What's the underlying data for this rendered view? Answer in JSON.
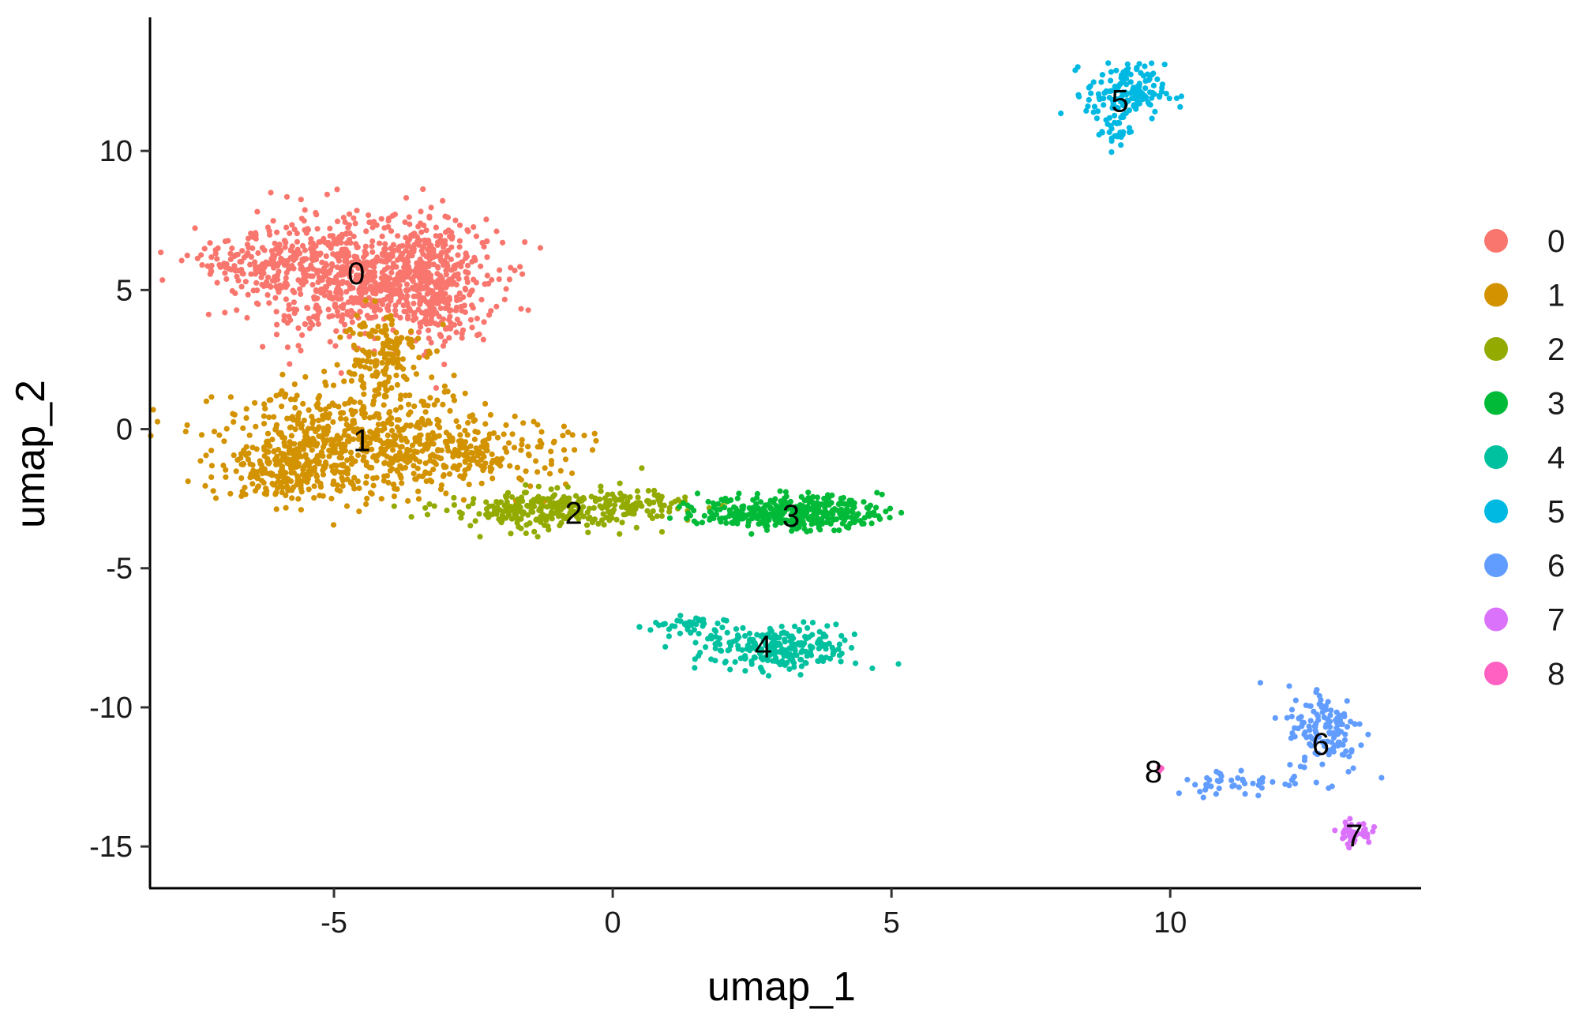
{
  "chart_data": {
    "type": "scatter",
    "title": "",
    "xlabel": "umap_1",
    "ylabel": "umap_2",
    "xlim": [
      -8.3,
      14.5
    ],
    "ylim": [
      -16.5,
      14.8
    ],
    "xticks": [
      -5,
      0,
      5,
      10
    ],
    "yticks": [
      -15,
      -10,
      -5,
      0,
      5,
      10
    ],
    "grid": false,
    "legend_position": "right",
    "clusters": [
      {
        "name": "0",
        "color": "#F8766D",
        "label_x": -4.6,
        "label_y": 5.6,
        "blobs": [
          {
            "cx": -4.5,
            "cy": 5.5,
            "sx": 1.1,
            "sy": 1.05,
            "n": 780
          },
          {
            "cx": -3.2,
            "cy": 5.2,
            "sx": 0.45,
            "sy": 1.1,
            "n": 260
          },
          {
            "cx": -6.3,
            "cy": 6.0,
            "sx": 0.6,
            "sy": 0.4,
            "n": 120
          }
        ]
      },
      {
        "name": "1",
        "color": "#D39200",
        "label_x": -4.5,
        "label_y": -0.4,
        "blobs": [
          {
            "cx": -4.6,
            "cy": -0.5,
            "sx": 1.2,
            "sy": 1.0,
            "n": 600
          },
          {
            "cx": -5.9,
            "cy": -1.4,
            "sx": 0.55,
            "sy": 0.5,
            "n": 160
          },
          {
            "cx": -4.2,
            "cy": 2.8,
            "sx": 0.35,
            "sy": 0.8,
            "n": 140
          },
          {
            "cx": -2.4,
            "cy": -0.9,
            "sx": 0.8,
            "sy": 0.6,
            "n": 180
          }
        ]
      },
      {
        "name": "2",
        "color": "#93AA00",
        "label_x": -0.7,
        "label_y": -3.0,
        "blobs": [
          {
            "cx": -1.2,
            "cy": -2.9,
            "sx": 0.9,
            "sy": 0.35,
            "n": 260
          },
          {
            "cx": 0.4,
            "cy": -2.7,
            "sx": 0.6,
            "sy": 0.25,
            "n": 80
          }
        ]
      },
      {
        "name": "3",
        "color": "#00BA38",
        "label_x": 3.2,
        "label_y": -3.1,
        "blobs": [
          {
            "cx": 3.2,
            "cy": -3.0,
            "sx": 0.8,
            "sy": 0.3,
            "n": 380
          }
        ]
      },
      {
        "name": "4",
        "color": "#00C19F",
        "label_x": 2.7,
        "label_y": -7.8,
        "blobs": [
          {
            "cx": 3.0,
            "cy": -7.9,
            "sx": 0.7,
            "sy": 0.4,
            "n": 240
          },
          {
            "cx": 1.3,
            "cy": -7.1,
            "sx": 0.35,
            "sy": 0.2,
            "n": 40
          }
        ]
      },
      {
        "name": "5",
        "color": "#00B9E3",
        "label_x": 9.1,
        "label_y": 11.8,
        "blobs": [
          {
            "cx": 9.2,
            "cy": 12.1,
            "sx": 0.35,
            "sy": 0.5,
            "n": 150
          },
          {
            "cx": 9.0,
            "cy": 10.8,
            "sx": 0.15,
            "sy": 0.35,
            "n": 30
          }
        ]
      },
      {
        "name": "6",
        "color": "#619CFF",
        "label_x": 12.7,
        "label_y": -11.3,
        "blobs": [
          {
            "cx": 12.8,
            "cy": -10.8,
            "sx": 0.35,
            "sy": 0.8,
            "n": 130
          },
          {
            "cx": 11.2,
            "cy": -12.7,
            "sx": 0.6,
            "sy": 0.25,
            "n": 45
          }
        ]
      },
      {
        "name": "7",
        "color": "#DB72FB",
        "label_x": 13.3,
        "label_y": -14.6,
        "blobs": [
          {
            "cx": 13.3,
            "cy": -14.5,
            "sx": 0.15,
            "sy": 0.2,
            "n": 45
          }
        ]
      },
      {
        "name": "8",
        "color": "#FF61C3",
        "label_x": 9.7,
        "label_y": -12.3,
        "blobs": [
          {
            "cx": 9.8,
            "cy": -12.2,
            "sx": 0.05,
            "sy": 0.05,
            "n": 5
          }
        ]
      }
    ]
  }
}
